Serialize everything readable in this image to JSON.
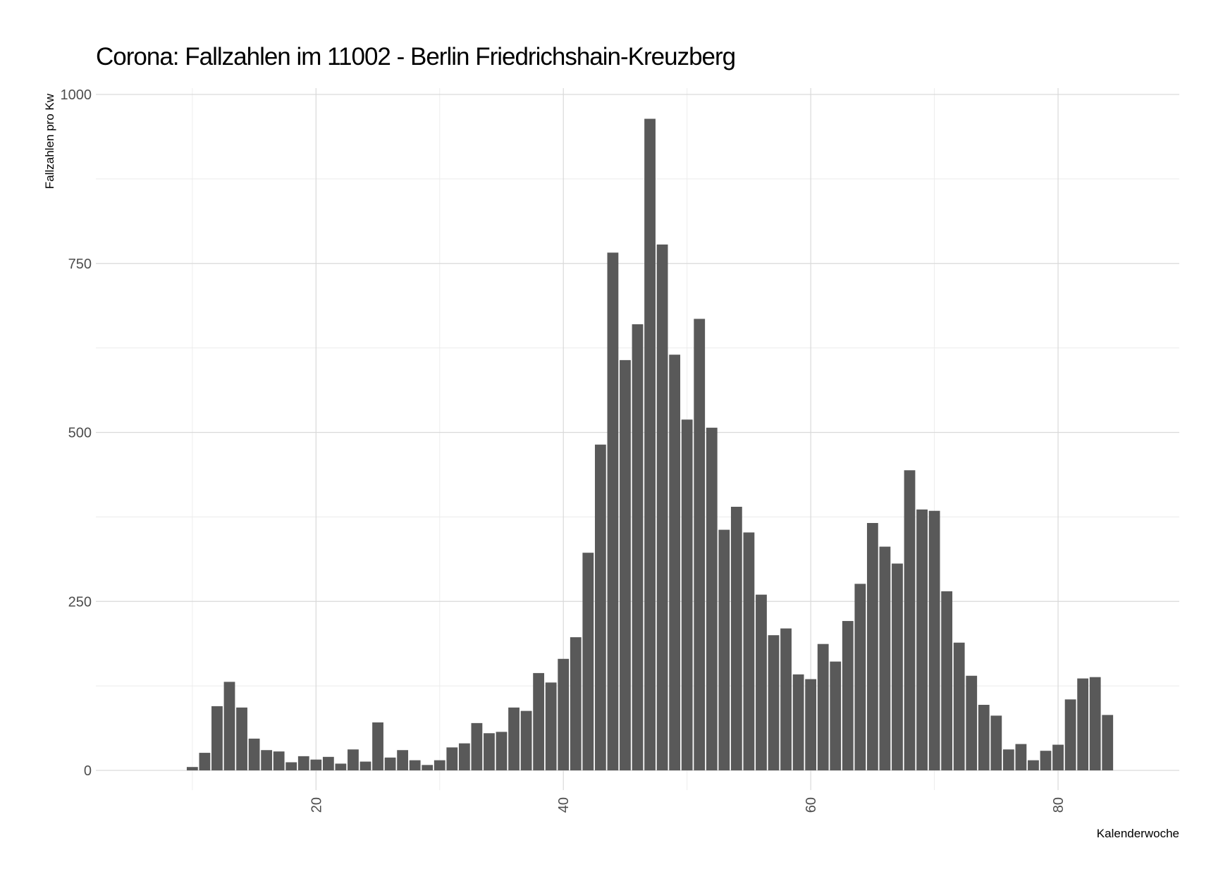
{
  "chart_data": {
    "type": "bar",
    "title": "Corona: Fallzahlen im 11002 - Berlin Friedrichshain-Kreuzberg",
    "xlabel": "Kalenderwoche",
    "ylabel": "Fallzahlen pro Kw",
    "xlim": [
      2.2,
      89.8
    ],
    "ylim": [
      0,
      1000
    ],
    "x_ticks": [
      20,
      40,
      60,
      80
    ],
    "y_ticks": [
      0,
      250,
      500,
      750,
      1000
    ],
    "grid": true,
    "x": [
      10,
      11,
      12,
      13,
      14,
      15,
      16,
      17,
      18,
      19,
      20,
      21,
      22,
      23,
      24,
      25,
      26,
      27,
      28,
      29,
      30,
      31,
      32,
      33,
      34,
      35,
      36,
      37,
      38,
      39,
      40,
      41,
      42,
      43,
      44,
      45,
      46,
      47,
      48,
      49,
      50,
      51,
      52,
      53,
      54,
      55,
      56,
      57,
      58,
      59,
      60,
      61,
      62,
      63,
      64,
      65,
      66,
      67,
      68,
      69,
      70,
      71,
      72,
      73,
      74,
      75,
      76,
      77,
      78,
      79,
      80,
      81,
      82,
      83,
      84
    ],
    "values": [
      5,
      26,
      95,
      131,
      93,
      47,
      30,
      28,
      12,
      21,
      16,
      20,
      10,
      31,
      13,
      71,
      19,
      30,
      15,
      8,
      15,
      34,
      40,
      70,
      55,
      57,
      93,
      88,
      144,
      130,
      165,
      197,
      322,
      482,
      766,
      607,
      660,
      964,
      778,
      615,
      519,
      668,
      507,
      356,
      390,
      352,
      260,
      200,
      210,
      142,
      135,
      187,
      161,
      221,
      276,
      366,
      331,
      306,
      444,
      386,
      384,
      265,
      189,
      140,
      97,
      81,
      31,
      39,
      15,
      29,
      38,
      105,
      136,
      138,
      82
    ]
  }
}
